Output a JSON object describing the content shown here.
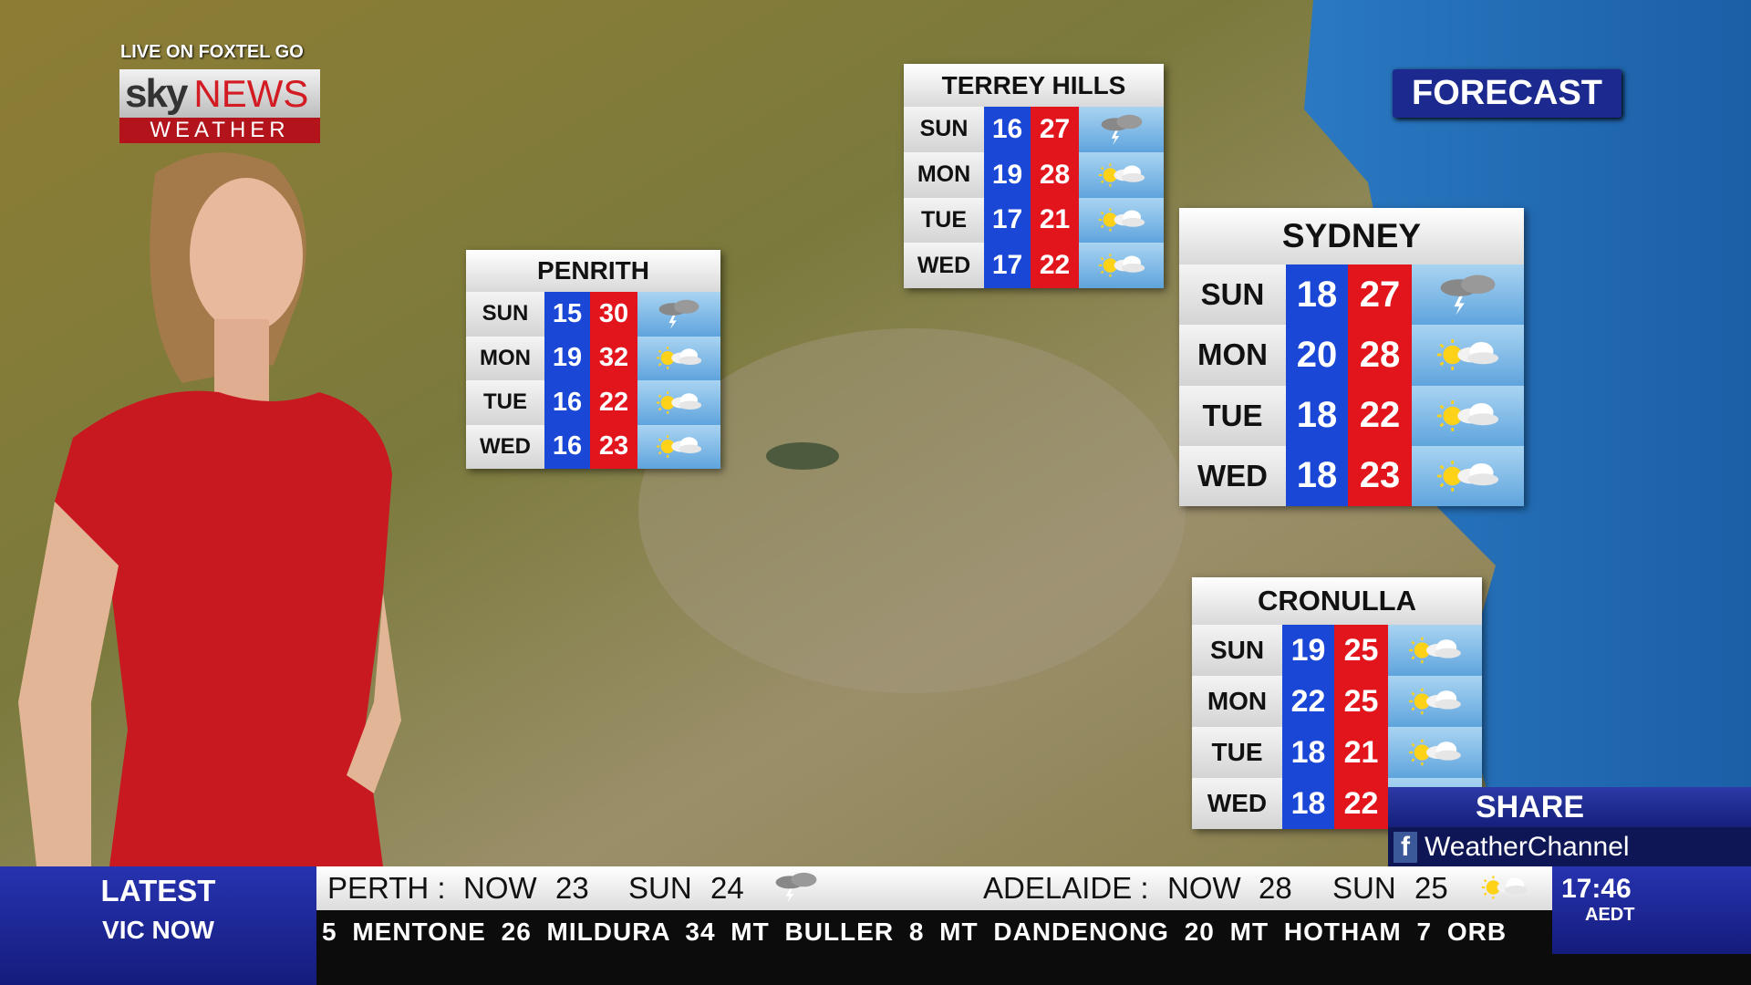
{
  "logo": {
    "top": "LIVE ON FOXTEL GO",
    "sky": "sky",
    "news": "NEWS",
    "sub": "WEATHER"
  },
  "forecast_label": "FORECAST",
  "panels": [
    {
      "name": "PENRITH",
      "days": [
        {
          "day": "SUN",
          "min": 15,
          "max": 30
        },
        {
          "day": "MON",
          "min": 19,
          "max": 32
        },
        {
          "day": "TUE",
          "min": 16,
          "max": 22
        },
        {
          "day": "WED",
          "min": 16,
          "max": 23
        }
      ]
    },
    {
      "name": "TERREY HILLS",
      "days": [
        {
          "day": "SUN",
          "min": 16,
          "max": 27
        },
        {
          "day": "MON",
          "min": 19,
          "max": 28
        },
        {
          "day": "TUE",
          "min": 17,
          "max": 21
        },
        {
          "day": "WED",
          "min": 17,
          "max": 22
        }
      ]
    },
    {
      "name": "SYDNEY",
      "days": [
        {
          "day": "SUN",
          "min": 18,
          "max": 27
        },
        {
          "day": "MON",
          "min": 20,
          "max": 28
        },
        {
          "day": "TUE",
          "min": 18,
          "max": 22
        },
        {
          "day": "WED",
          "min": 18,
          "max": 23
        }
      ]
    },
    {
      "name": "CRONULLA",
      "days": [
        {
          "day": "SUN",
          "min": 19,
          "max": 25
        },
        {
          "day": "MON",
          "min": 22,
          "max": 25
        },
        {
          "day": "TUE",
          "min": 18,
          "max": 21
        },
        {
          "day": "WED",
          "min": 18,
          "max": 22
        }
      ]
    }
  ],
  "share": {
    "title": "SHARE",
    "handle": "WeatherChannel"
  },
  "ticker": {
    "label": "LATEST",
    "sublabel": "VIC NOW",
    "headline": [
      "PERTH :",
      "NOW",
      23,
      "SUN",
      24,
      "ADELAIDE :",
      "NOW",
      28,
      "SUN",
      25
    ],
    "crawl": "5 MENTONE 26 MILDURA 34 MT BULLER 8 MT DANDENONG 20 MT HOTHAM 7 ORB"
  },
  "clock": {
    "time": "17:46",
    "zone": "AEDT"
  }
}
